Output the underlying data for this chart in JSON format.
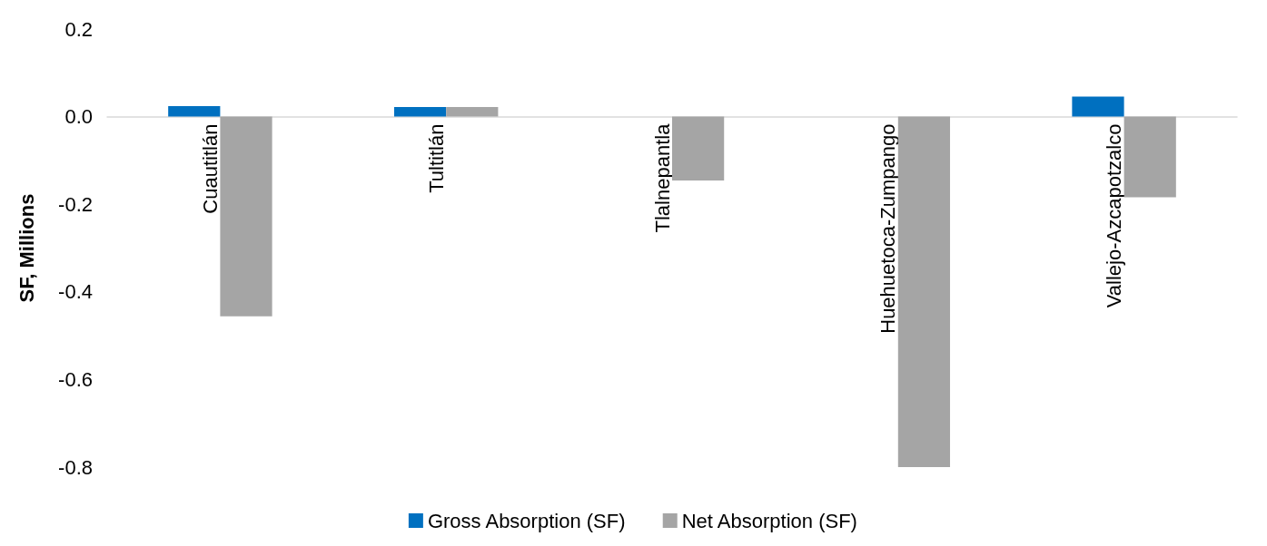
{
  "chart_data": {
    "type": "bar",
    "ylabel": "SF, Millions",
    "categories": [
      "Cuautitlán",
      "Tultitlán",
      "Tlalnepantla",
      "Huehuetoca-Zumpango",
      "Vallejo-Azcapotzalco"
    ],
    "series": [
      {
        "name": "Gross Absorption (SF)",
        "color": "#0070c0",
        "values": [
          0.024,
          0.022,
          0,
          0,
          0.046
        ]
      },
      {
        "name": "Net Absorption (SF)",
        "color": "#a5a5a5",
        "values": [
          -0.456,
          0.022,
          -0.146,
          -0.8,
          -0.184
        ]
      }
    ],
    "ylim": [
      -0.8,
      0.2
    ],
    "yticks": [
      -0.8,
      -0.6,
      -0.4,
      -0.2,
      {
        "value": 0,
        "label": "0.0"
      },
      0.2
    ],
    "grid": false,
    "legend": "bottom"
  }
}
